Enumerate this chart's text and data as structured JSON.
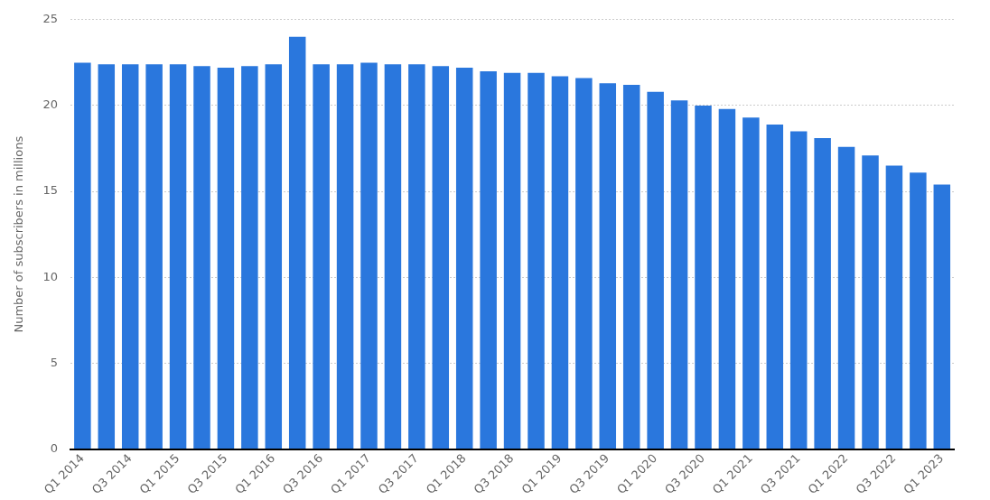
{
  "chart_data": {
    "type": "bar",
    "ylabel": "Number of subscribers in millions",
    "categories": [
      "Q1 2014",
      null,
      "Q3 2014",
      null,
      "Q1 2015",
      null,
      "Q3 2015",
      null,
      "Q1 2016",
      null,
      "Q3 2016",
      null,
      "Q1 2017",
      null,
      "Q3 2017",
      null,
      "Q1 2018",
      null,
      "Q3 2018",
      null,
      "Q1 2019",
      null,
      "Q3 2019",
      null,
      "Q1 2020",
      null,
      "Q3 2020",
      null,
      "Q1 2021",
      null,
      "Q3 2021",
      null,
      "Q1 2022",
      null,
      "Q3 2022",
      null,
      "Q1 2023"
    ],
    "values": [
      22.5,
      22.4,
      22.4,
      22.4,
      22.4,
      22.3,
      22.2,
      22.3,
      22.4,
      24.0,
      22.4,
      22.4,
      22.5,
      22.4,
      22.4,
      22.3,
      22.2,
      22.0,
      21.9,
      21.9,
      21.7,
      21.6,
      21.3,
      21.2,
      20.8,
      20.3,
      20.0,
      19.8,
      19.3,
      18.9,
      18.5,
      18.1,
      17.6,
      17.1,
      16.5,
      16.1,
      15.4
    ],
    "color": "#2a77dd",
    "ylim": [
      0,
      25
    ],
    "yticks": [
      0,
      5,
      10,
      15,
      20,
      25
    ],
    "grid": "y"
  }
}
